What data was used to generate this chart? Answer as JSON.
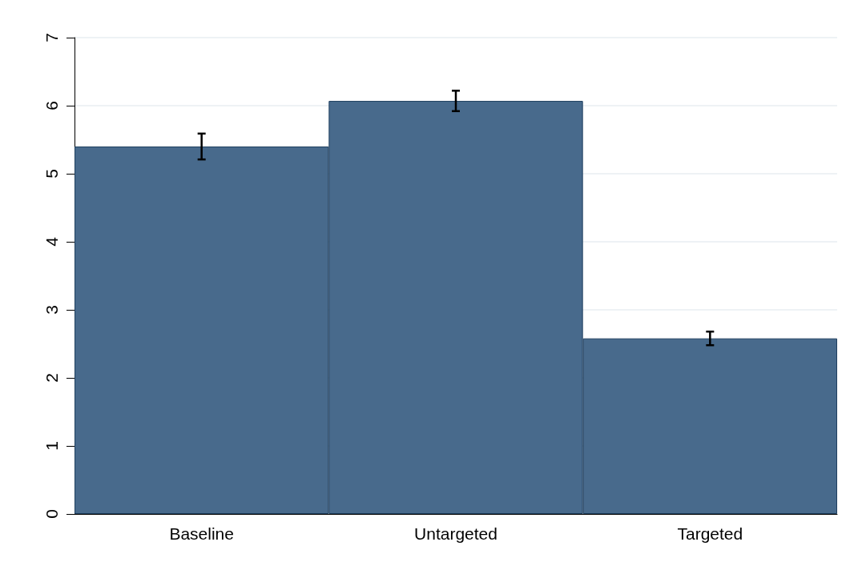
{
  "chart_data": {
    "type": "bar",
    "categories": [
      "Baseline",
      "Untargeted",
      "Targeted"
    ],
    "values": [
      5.4,
      6.07,
      2.58
    ],
    "errors": [
      0.19,
      0.15,
      0.1
    ],
    "color": "#486a8c",
    "ylim": [
      0,
      7
    ],
    "yticks": [
      0,
      1,
      2,
      3,
      4,
      5,
      6,
      7
    ],
    "grid": "y"
  }
}
